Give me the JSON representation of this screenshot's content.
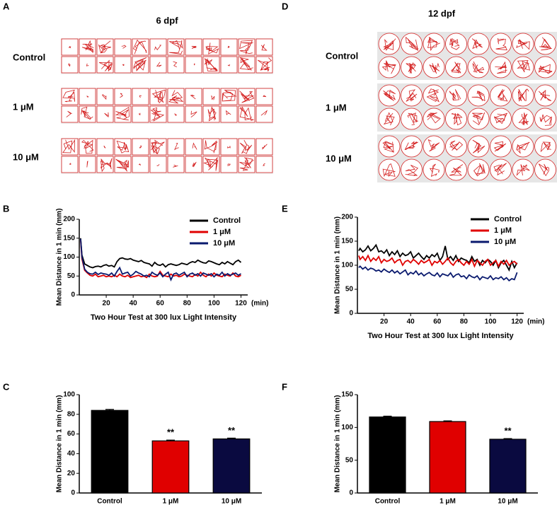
{
  "track_panels": [
    {
      "label": "A",
      "title": "6 dpf",
      "groups": [
        "Control",
        "1 μM",
        "10 μM"
      ]
    },
    {
      "label": "D",
      "title": "12 dpf",
      "groups": [
        "Control",
        "1 μM",
        "10 μM"
      ]
    }
  ],
  "chart_data": [
    {
      "type": "line",
      "label": "B",
      "x_label": "Two Hour Test at 300 lux Light Intensity",
      "x_unit": "(min)",
      "y_label": "Mean Distance in 1 min (mm)",
      "x": [
        1,
        2,
        4,
        6,
        8,
        10,
        12,
        14,
        16,
        18,
        20,
        22,
        24,
        26,
        28,
        30,
        32,
        34,
        36,
        38,
        40,
        42,
        44,
        46,
        48,
        50,
        52,
        54,
        56,
        58,
        60,
        62,
        64,
        66,
        68,
        70,
        72,
        74,
        76,
        78,
        80,
        82,
        84,
        86,
        88,
        90,
        92,
        94,
        96,
        98,
        100,
        102,
        104,
        106,
        108,
        110,
        112,
        114,
        116,
        118,
        120
      ],
      "xlim": [
        0,
        125
      ],
      "xticks": [
        20,
        40,
        60,
        80,
        100,
        120
      ],
      "ylim": [
        0,
        200
      ],
      "yticks": [
        0,
        50,
        100,
        150,
        200
      ],
      "legend": "upper right",
      "series": [
        {
          "name": "Control",
          "color": "#000000",
          "values": [
            150,
            105,
            82,
            78,
            74,
            72,
            75,
            76,
            74,
            78,
            80,
            76,
            78,
            74,
            88,
            96,
            98,
            95,
            94,
            96,
            92,
            90,
            88,
            91,
            86,
            84,
            82,
            76,
            86,
            80,
            78,
            82,
            74,
            80,
            82,
            80,
            78,
            80,
            84,
            82,
            80,
            85,
            88,
            86,
            92,
            88,
            85,
            84,
            90,
            88,
            85,
            82,
            80,
            86,
            82,
            88,
            84,
            80,
            88,
            92,
            86
          ]
        },
        {
          "name": "1 μM",
          "color": "#e00000",
          "values": [
            145,
            95,
            65,
            58,
            52,
            50,
            55,
            48,
            50,
            52,
            48,
            50,
            48,
            52,
            48,
            55,
            50,
            48,
            52,
            46,
            48,
            50,
            52,
            48,
            50,
            46,
            55,
            50,
            48,
            50,
            62,
            52,
            50,
            48,
            55,
            50,
            52,
            48,
            50,
            55,
            52,
            50,
            48,
            54,
            50,
            60,
            52,
            48,
            55,
            50,
            58,
            52,
            50,
            48,
            55,
            52,
            50,
            58,
            50,
            48,
            52
          ]
        },
        {
          "name": "10 μM",
          "color": "#0a1a6e",
          "values": [
            148,
            100,
            68,
            60,
            56,
            55,
            60,
            54,
            58,
            56,
            55,
            52,
            58,
            50,
            62,
            72,
            55,
            58,
            60,
            50,
            55,
            62,
            58,
            55,
            50,
            52,
            48,
            60,
            55,
            52,
            58,
            48,
            55,
            60,
            40,
            55,
            58,
            52,
            56,
            60,
            48,
            55,
            58,
            52,
            56,
            50,
            58,
            55,
            52,
            56,
            48,
            55,
            52,
            60,
            50,
            56,
            52,
            55,
            58,
            52,
            56
          ]
        }
      ]
    },
    {
      "type": "line",
      "label": "E",
      "x_label": "Two Hour Test at 300 lux Light Intensity",
      "x_unit": "(min)",
      "y_label": "Mean Distance in 1 min (mm)",
      "x": [
        1,
        2,
        4,
        6,
        8,
        10,
        12,
        14,
        16,
        18,
        20,
        22,
        24,
        26,
        28,
        30,
        32,
        34,
        36,
        38,
        40,
        42,
        44,
        46,
        48,
        50,
        52,
        54,
        56,
        58,
        60,
        62,
        64,
        66,
        68,
        70,
        72,
        74,
        76,
        78,
        80,
        82,
        84,
        86,
        88,
        90,
        92,
        94,
        96,
        98,
        100,
        102,
        104,
        106,
        108,
        110,
        112,
        114,
        116,
        118,
        120
      ],
      "xlim": [
        0,
        125
      ],
      "xticks": [
        20,
        40,
        60,
        80,
        100,
        120
      ],
      "ylim": [
        0,
        200
      ],
      "yticks": [
        0,
        50,
        100,
        150,
        200
      ],
      "legend": "upper right",
      "series": [
        {
          "name": "Control",
          "color": "#000000",
          "values": [
            130,
            135,
            128,
            132,
            140,
            130,
            135,
            142,
            128,
            130,
            125,
            132,
            120,
            128,
            122,
            130,
            118,
            125,
            120,
            122,
            128,
            115,
            120,
            125,
            118,
            112,
            120,
            115,
            122,
            118,
            125,
            110,
            118,
            140,
            112,
            118,
            110,
            120,
            108,
            115,
            112,
            110,
            105,
            118,
            108,
            112,
            100,
            110,
            105,
            112,
            108,
            100,
            110,
            95,
            105,
            110,
            100,
            90,
            108,
            95,
            105
          ]
        },
        {
          "name": "1 μM",
          "color": "#e00000",
          "values": [
            120,
            112,
            118,
            110,
            120,
            108,
            115,
            110,
            118,
            105,
            112,
            108,
            110,
            115,
            105,
            110,
            112,
            100,
            108,
            110,
            105,
            112,
            108,
            102,
            110,
            105,
            108,
            112,
            100,
            108,
            105,
            110,
            102,
            108,
            115,
            105,
            100,
            108,
            112,
            105,
            100,
            108,
            102,
            112,
            98,
            110,
            105,
            100,
            108,
            112,
            100,
            105,
            110,
            98,
            108,
            102,
            110,
            100,
            105,
            108,
            102
          ]
        },
        {
          "name": "10 μM",
          "color": "#0a1a6e",
          "values": [
            95,
            98,
            92,
            96,
            90,
            94,
            92,
            88,
            90,
            86,
            92,
            88,
            85,
            90,
            84,
            88,
            82,
            86,
            90,
            80,
            85,
            82,
            88,
            80,
            84,
            78,
            82,
            85,
            80,
            78,
            84,
            76,
            82,
            80,
            78,
            84,
            75,
            80,
            82,
            76,
            78,
            72,
            80,
            76,
            74,
            78,
            70,
            76,
            74,
            72,
            78,
            70,
            74,
            72,
            76,
            70,
            74,
            68,
            72,
            70,
            85
          ]
        }
      ]
    },
    {
      "type": "bar",
      "label": "C",
      "y_label": "Mean Distance in 1 min (mm)",
      "categories": [
        "Control",
        "1 μM",
        "10 μM"
      ],
      "values": [
        84,
        53,
        55
      ],
      "errors": [
        1,
        0.8,
        0.8
      ],
      "colors": [
        "#000000",
        "#e00000",
        "#0a0a40"
      ],
      "annotations": [
        {
          "text": "**",
          "index": 1
        },
        {
          "text": "**",
          "index": 2
        }
      ],
      "ylim": [
        0,
        100
      ],
      "yticks": [
        0,
        20,
        40,
        60,
        80,
        100
      ]
    },
    {
      "type": "bar",
      "label": "F",
      "y_label": "Mean Distance in 1 min (mm)",
      "categories": [
        "Control",
        "1 μM",
        "10 μM"
      ],
      "values": [
        116,
        109,
        82
      ],
      "errors": [
        1.2,
        1,
        1
      ],
      "colors": [
        "#000000",
        "#e00000",
        "#0a0a40"
      ],
      "annotations": [
        {
          "text": "**",
          "index": 2
        }
      ],
      "ylim": [
        0,
        150
      ],
      "yticks": [
        0,
        50,
        100,
        150
      ]
    }
  ]
}
